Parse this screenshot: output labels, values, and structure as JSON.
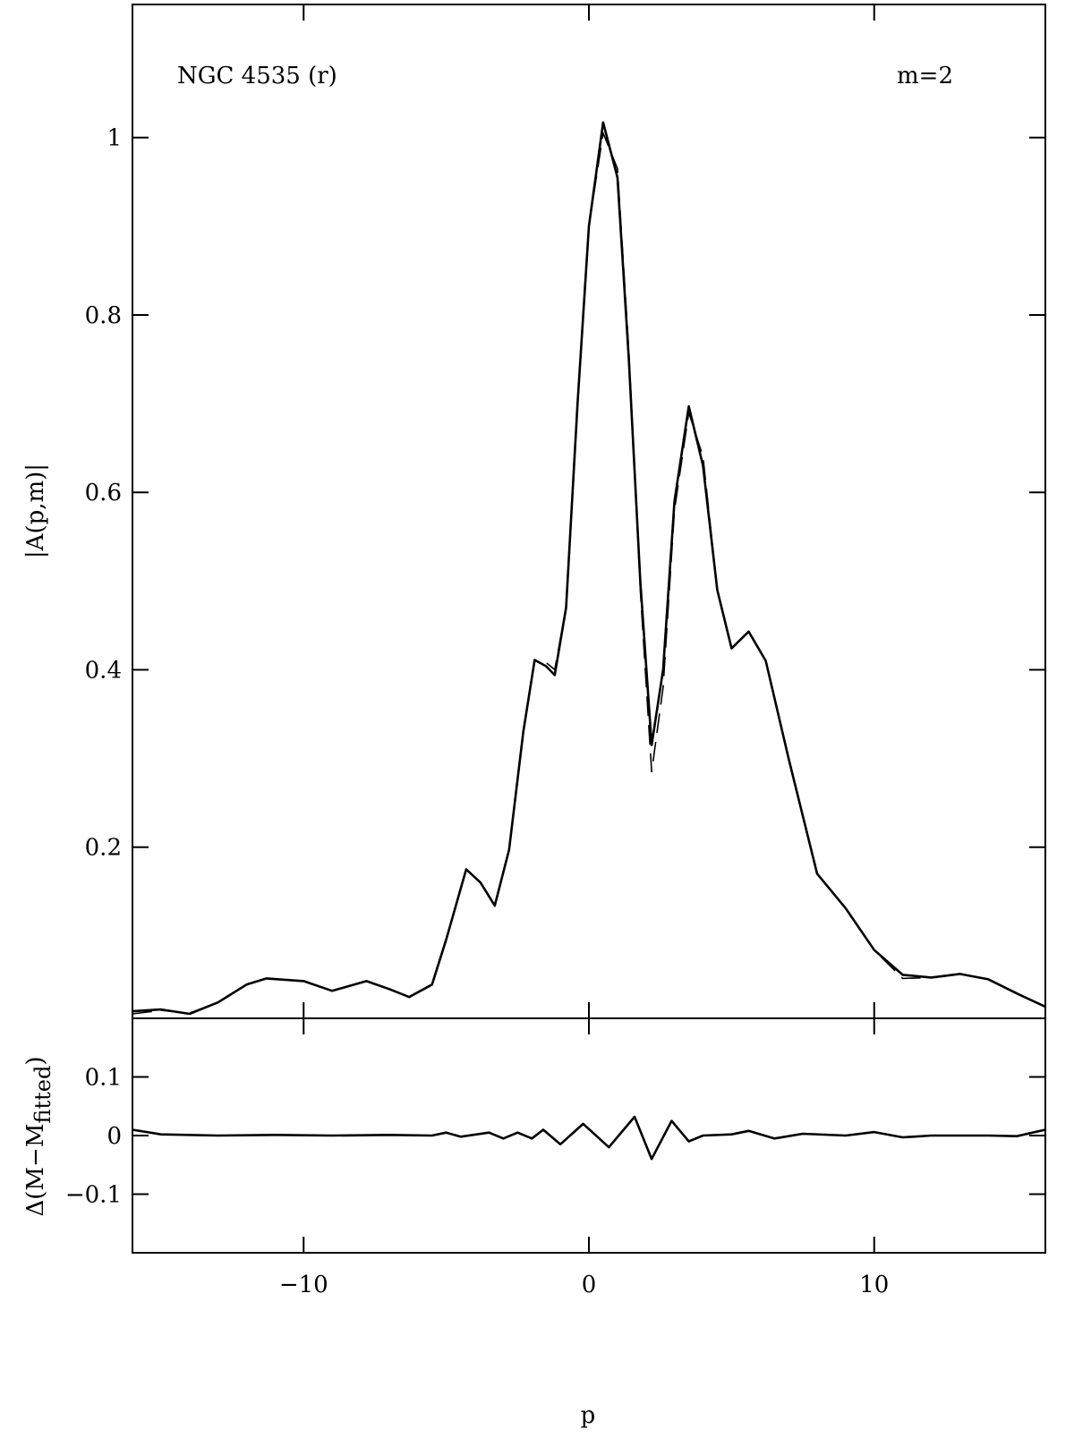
{
  "chart_data": [
    {
      "type": "line",
      "annotations": [
        "NGC 4535 (r)",
        "m=2"
      ],
      "ylabel": "|A(p,m)|",
      "x": [
        -16,
        -15,
        -14,
        -13,
        -12,
        -11.3,
        -10,
        -9,
        -7.8,
        -7,
        -6.3,
        -5.5,
        -5,
        -4.3,
        -3.8,
        -3.3,
        -2.8,
        -2.3,
        -1.9,
        -1.5,
        -1.2,
        -0.8,
        -0.4,
        0,
        0.5,
        1,
        1.4,
        1.8,
        2.2,
        2.6,
        3,
        3.5,
        4,
        4.5,
        5,
        5.6,
        6.2,
        7,
        8,
        9,
        10,
        11,
        12,
        13,
        14,
        15,
        16
      ],
      "series": [
        {
          "color": "#000000",
          "dashed": false,
          "values": [
            0.015,
            0.017,
            0.012,
            0.025,
            0.045,
            0.052,
            0.049,
            0.038,
            0.049,
            0.04,
            0.031,
            0.045,
            0.096,
            0.175,
            0.16,
            0.134,
            0.197,
            0.33,
            0.411,
            0.404,
            0.394,
            0.47,
            0.7,
            0.9,
            1.017,
            0.955,
            0.75,
            0.5,
            0.315,
            0.4,
            0.59,
            0.697,
            0.63,
            0.49,
            0.424,
            0.443,
            0.41,
            0.3,
            0.17,
            0.131,
            0.084,
            0.056,
            0.053,
            0.057,
            0.051,
            0.035,
            0.02
          ]
        },
        {
          "color": "#000000",
          "dashed": true,
          "values": [
            0.012,
            0.016,
            0.013,
            0.025,
            0.045,
            0.052,
            0.049,
            0.038,
            0.049,
            0.04,
            0.031,
            0.045,
            0.096,
            0.175,
            0.16,
            0.134,
            0.197,
            0.33,
            0.41,
            0.408,
            0.4,
            0.47,
            0.7,
            0.9,
            1.005,
            0.965,
            0.76,
            0.49,
            0.285,
            0.38,
            0.58,
            0.69,
            0.64,
            0.49,
            0.424,
            0.443,
            0.41,
            0.3,
            0.17,
            0.131,
            0.084,
            0.052,
            0.053,
            0.057,
            0.051,
            0.035,
            0.02
          ]
        }
      ],
      "xlim": [
        -16,
        16
      ],
      "xticks": [
        {
          "value": -10,
          "label": "−10"
        },
        0,
        10
      ],
      "ylim": [
        0.007,
        1.15
      ],
      "yticks": [
        0.2,
        0.4,
        0.6,
        0.8,
        1
      ],
      "xtick_labels": false
    },
    {
      "type": "line",
      "xlabel": "p",
      "ylabel": {
        "text": "Δ(M−M",
        "subscript": "fitted",
        "suffix": ")"
      },
      "x": [
        -16,
        -15,
        -13,
        -11,
        -9,
        -7,
        -5.5,
        -5,
        -4.5,
        -3.5,
        -3,
        -2.5,
        -2,
        -1.6,
        -1,
        -0.2,
        0.7,
        1.6,
        2.2,
        2.9,
        3.5,
        4,
        5,
        5.6,
        6.5,
        7.5,
        9,
        10,
        11,
        12,
        14,
        15,
        16
      ],
      "series": [
        {
          "color": "#000000",
          "dashed": false,
          "values": [
            0.01,
            0.002,
            0.0,
            0.001,
            0.0,
            0.001,
            0.0,
            0.005,
            -0.002,
            0.005,
            -0.005,
            0.005,
            -0.005,
            0.01,
            -0.015,
            0.02,
            -0.02,
            0.032,
            -0.04,
            0.025,
            -0.01,
            0.0,
            0.002,
            0.008,
            -0.005,
            0.003,
            0.0,
            0.006,
            -0.003,
            0.0,
            0.0,
            -0.001,
            0.01
          ]
        }
      ],
      "xlim": [
        -16,
        16
      ],
      "xticks": [
        {
          "value": -10,
          "label": "−10"
        },
        0,
        10
      ],
      "ylim": [
        -0.2,
        0.2
      ],
      "yticks": [
        {
          "value": -0.1,
          "label": "−0.1"
        },
        0,
        0.1
      ],
      "xtick_labels": true
    }
  ]
}
